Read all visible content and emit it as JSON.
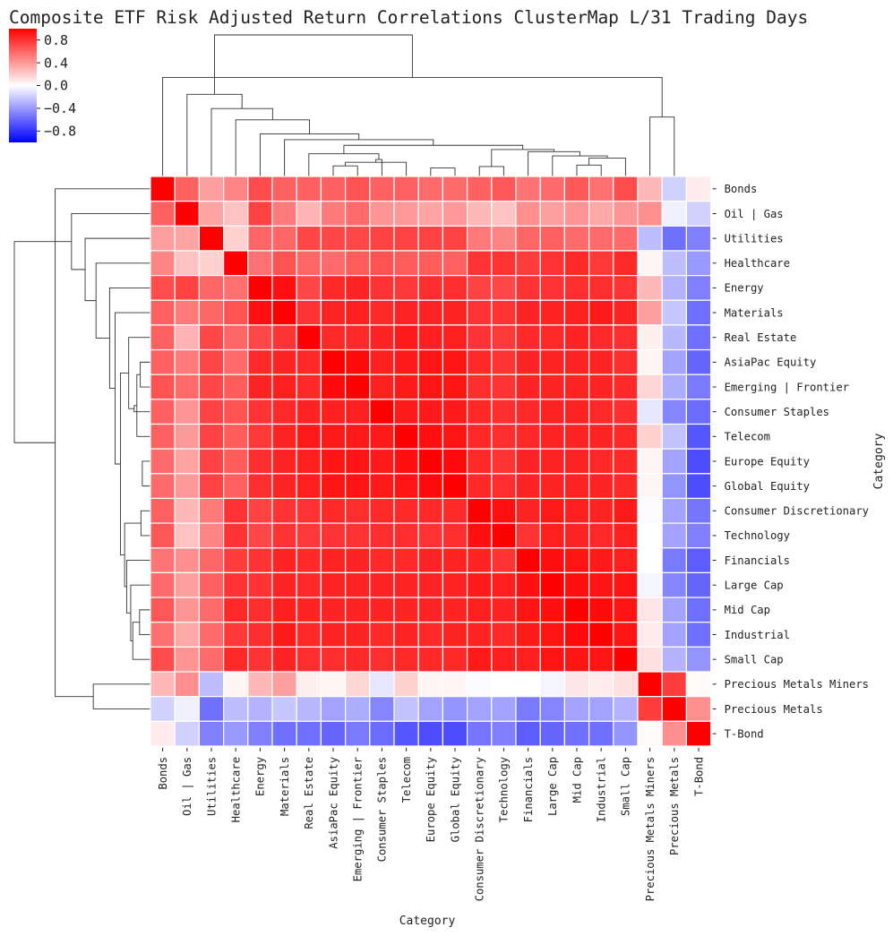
{
  "chart_data": {
    "type": "heatmap",
    "title": "Composite ETF Risk Adjusted Return Correlations ClusterMap L/31 Trading Days",
    "xlabel": "Category",
    "ylabel": "Category",
    "colormap": {
      "low": "#0000ff",
      "mid": "#ffffff",
      "high": "#ff0000"
    },
    "vmin": -1.0,
    "vmax": 1.0,
    "colorbar_ticks": [
      {
        "value": 0.8,
        "label": "0.8"
      },
      {
        "value": 0.4,
        "label": "0.4"
      },
      {
        "value": 0.0,
        "label": "0.0"
      },
      {
        "value": -0.4,
        "label": "−0.4"
      },
      {
        "value": -0.8,
        "label": "−0.8"
      }
    ],
    "categories": [
      "Bonds",
      "Oil | Gas",
      "Utilities",
      "Healthcare",
      "Energy",
      "Materials",
      "Real Estate",
      "AsiaPac Equity",
      "Emerging | Frontier",
      "Consumer Staples",
      "Telecom",
      "Europe Equity",
      "Global Equity",
      "Consumer Discretionary",
      "Technology",
      "Financials",
      "Large Cap",
      "Mid Cap",
      "Industrial",
      "Small Cap",
      "Precious Metals Miners",
      "Precious Metals",
      "T-Bond"
    ],
    "matrix": [
      [
        1.0,
        0.62,
        0.38,
        0.48,
        0.7,
        0.62,
        0.62,
        0.62,
        0.68,
        0.62,
        0.62,
        0.58,
        0.58,
        0.62,
        0.66,
        0.54,
        0.58,
        0.66,
        0.56,
        0.7,
        0.28,
        -0.18,
        0.08
      ],
      [
        0.62,
        1.0,
        0.36,
        0.24,
        0.74,
        0.52,
        0.3,
        0.52,
        0.58,
        0.42,
        0.4,
        0.36,
        0.4,
        0.28,
        0.24,
        0.44,
        0.38,
        0.42,
        0.34,
        0.42,
        0.44,
        -0.06,
        -0.18
      ],
      [
        0.38,
        0.36,
        1.0,
        0.18,
        0.6,
        0.6,
        0.72,
        0.72,
        0.72,
        0.74,
        0.74,
        0.74,
        0.74,
        0.52,
        0.48,
        0.6,
        0.62,
        0.58,
        0.58,
        0.58,
        -0.26,
        -0.56,
        -0.5
      ],
      [
        0.48,
        0.24,
        0.18,
        1.0,
        0.56,
        0.68,
        0.6,
        0.58,
        0.64,
        0.68,
        0.64,
        0.64,
        0.62,
        0.8,
        0.8,
        0.76,
        0.8,
        0.84,
        0.78,
        0.84,
        0.04,
        -0.26,
        -0.4
      ],
      [
        0.7,
        0.74,
        0.6,
        0.56,
        1.0,
        0.94,
        0.72,
        0.84,
        0.86,
        0.8,
        0.78,
        0.82,
        0.82,
        0.74,
        0.72,
        0.8,
        0.8,
        0.82,
        0.82,
        0.8,
        0.28,
        -0.3,
        -0.5
      ],
      [
        0.62,
        0.52,
        0.6,
        0.68,
        0.94,
        1.0,
        0.8,
        0.86,
        0.88,
        0.84,
        0.86,
        0.86,
        0.86,
        0.8,
        0.8,
        0.86,
        0.86,
        0.88,
        0.9,
        0.86,
        0.38,
        -0.22,
        -0.56
      ],
      [
        0.62,
        0.3,
        0.72,
        0.6,
        0.72,
        0.8,
        1.0,
        0.84,
        0.84,
        0.86,
        0.9,
        0.88,
        0.88,
        0.8,
        0.78,
        0.84,
        0.84,
        0.86,
        0.84,
        0.82,
        0.06,
        -0.28,
        -0.56
      ],
      [
        0.62,
        0.52,
        0.72,
        0.58,
        0.84,
        0.86,
        0.84,
        1.0,
        0.96,
        0.88,
        0.9,
        0.92,
        0.92,
        0.84,
        0.8,
        0.86,
        0.86,
        0.86,
        0.86,
        0.82,
        0.04,
        -0.36,
        -0.6
      ],
      [
        0.68,
        0.58,
        0.72,
        0.64,
        0.86,
        0.88,
        0.84,
        0.96,
        1.0,
        0.88,
        0.9,
        0.92,
        0.92,
        0.82,
        0.8,
        0.86,
        0.86,
        0.86,
        0.86,
        0.84,
        0.16,
        -0.32,
        -0.52
      ],
      [
        0.62,
        0.42,
        0.74,
        0.68,
        0.8,
        0.84,
        0.86,
        0.88,
        0.88,
        1.0,
        0.9,
        0.9,
        0.9,
        0.84,
        0.82,
        0.84,
        0.86,
        0.86,
        0.84,
        0.82,
        -0.1,
        -0.48,
        -0.58
      ],
      [
        0.62,
        0.4,
        0.74,
        0.64,
        0.78,
        0.86,
        0.9,
        0.9,
        0.9,
        0.9,
        1.0,
        0.94,
        0.92,
        0.84,
        0.82,
        0.84,
        0.86,
        0.86,
        0.86,
        0.84,
        0.18,
        -0.24,
        -0.66
      ],
      [
        0.58,
        0.36,
        0.74,
        0.64,
        0.82,
        0.86,
        0.88,
        0.92,
        0.92,
        0.9,
        0.94,
        1.0,
        0.96,
        0.84,
        0.8,
        0.86,
        0.86,
        0.86,
        0.84,
        0.84,
        0.04,
        -0.36,
        -0.7
      ],
      [
        0.58,
        0.4,
        0.74,
        0.62,
        0.82,
        0.86,
        0.88,
        0.92,
        0.92,
        0.9,
        0.92,
        0.96,
        1.0,
        0.84,
        0.82,
        0.86,
        0.86,
        0.86,
        0.86,
        0.84,
        0.04,
        -0.42,
        -0.7
      ],
      [
        0.62,
        0.28,
        0.52,
        0.8,
        0.74,
        0.8,
        0.8,
        0.84,
        0.82,
        0.84,
        0.84,
        0.84,
        0.84,
        1.0,
        0.94,
        0.86,
        0.9,
        0.88,
        0.86,
        0.9,
        -0.02,
        -0.36,
        -0.54
      ],
      [
        0.66,
        0.24,
        0.48,
        0.8,
        0.72,
        0.8,
        0.78,
        0.8,
        0.8,
        0.82,
        0.82,
        0.8,
        0.82,
        0.94,
        1.0,
        0.8,
        0.88,
        0.86,
        0.84,
        0.88,
        0.0,
        -0.36,
        -0.5
      ],
      [
        0.54,
        0.44,
        0.6,
        0.76,
        0.8,
        0.86,
        0.84,
        0.86,
        0.86,
        0.84,
        0.84,
        0.86,
        0.86,
        0.86,
        0.8,
        1.0,
        0.94,
        0.92,
        0.9,
        0.88,
        0.0,
        -0.52,
        -0.64
      ],
      [
        0.58,
        0.38,
        0.62,
        0.8,
        0.8,
        0.86,
        0.84,
        0.86,
        0.86,
        0.86,
        0.86,
        0.86,
        0.86,
        0.9,
        0.88,
        0.94,
        1.0,
        0.94,
        0.92,
        0.92,
        -0.04,
        -0.48,
        -0.6
      ],
      [
        0.66,
        0.42,
        0.58,
        0.84,
        0.82,
        0.88,
        0.86,
        0.86,
        0.86,
        0.86,
        0.86,
        0.86,
        0.86,
        0.88,
        0.86,
        0.92,
        0.94,
        1.0,
        0.96,
        0.92,
        0.1,
        -0.36,
        -0.56
      ],
      [
        0.56,
        0.34,
        0.58,
        0.78,
        0.82,
        0.9,
        0.84,
        0.86,
        0.86,
        0.84,
        0.86,
        0.84,
        0.86,
        0.86,
        0.84,
        0.9,
        0.92,
        0.96,
        1.0,
        0.92,
        0.08,
        -0.36,
        -0.56
      ],
      [
        0.7,
        0.42,
        0.58,
        0.84,
        0.8,
        0.86,
        0.82,
        0.82,
        0.84,
        0.82,
        0.84,
        0.84,
        0.84,
        0.9,
        0.88,
        0.88,
        0.92,
        0.92,
        0.92,
        1.0,
        0.12,
        -0.3,
        -0.42
      ],
      [
        0.28,
        0.44,
        -0.26,
        0.04,
        0.28,
        0.38,
        0.06,
        0.04,
        0.16,
        -0.1,
        0.18,
        0.04,
        0.04,
        -0.02,
        0.0,
        0.0,
        -0.04,
        0.1,
        0.08,
        0.12,
        1.0,
        0.76,
        0.02
      ],
      [
        -0.18,
        -0.06,
        -0.56,
        -0.26,
        -0.3,
        -0.22,
        -0.28,
        -0.36,
        -0.32,
        -0.48,
        -0.24,
        -0.36,
        -0.42,
        -0.36,
        -0.36,
        -0.52,
        -0.48,
        -0.36,
        -0.36,
        -0.3,
        0.76,
        1.0,
        0.44
      ],
      [
        0.08,
        -0.18,
        -0.5,
        -0.4,
        -0.5,
        -0.56,
        -0.56,
        -0.6,
        -0.52,
        -0.58,
        -0.66,
        -0.7,
        -0.7,
        -0.54,
        -0.5,
        -0.64,
        -0.6,
        -0.56,
        -0.56,
        -0.42,
        0.02,
        0.44,
        1.0
      ]
    ]
  }
}
